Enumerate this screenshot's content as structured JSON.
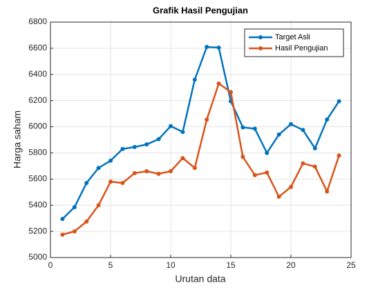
{
  "chart_data": {
    "type": "line",
    "title": "Grafik Hasil Pengujian",
    "x_label": "Urutan data",
    "y_label": "Harga saham",
    "x": [
      1,
      2,
      3,
      4,
      5,
      6,
      7,
      8,
      9,
      10,
      11,
      12,
      13,
      14,
      15,
      16,
      17,
      18,
      19,
      20,
      21,
      22,
      23,
      24
    ],
    "series": [
      {
        "name": "Target Asli",
        "color": "#0072bd",
        "values": [
          5295,
          5385,
          5570,
          5685,
          5740,
          5830,
          5845,
          5865,
          5905,
          6005,
          5960,
          6360,
          6610,
          6605,
          6195,
          5995,
          5985,
          5800,
          5940,
          6020,
          5975,
          5835,
          6055,
          6195
        ]
      },
      {
        "name": "Hasil Pengujian",
        "color": "#d95319",
        "values": [
          5175,
          5200,
          5275,
          5400,
          5580,
          5570,
          5645,
          5660,
          5640,
          5660,
          5760,
          5685,
          6055,
          6330,
          6265,
          5770,
          5630,
          5650,
          5465,
          5540,
          5720,
          5695,
          5505,
          5780
        ]
      }
    ],
    "xlim": [
      0,
      25
    ],
    "xticks": [
      0,
      5,
      10,
      15,
      20,
      25
    ],
    "ylim": [
      5000,
      6800
    ],
    "yticks": [
      5000,
      5200,
      5400,
      5600,
      5800,
      6000,
      6200,
      6400,
      6600,
      6800
    ],
    "grid": true,
    "legend": "northeast"
  }
}
